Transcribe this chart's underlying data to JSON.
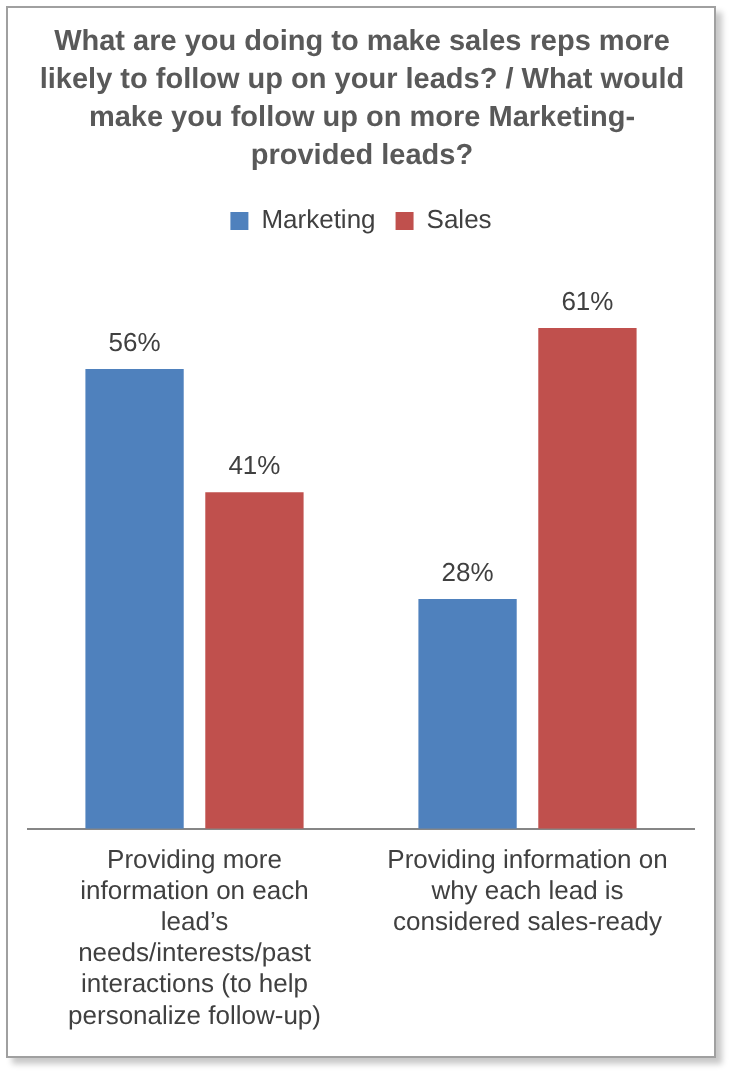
{
  "chart_data": {
    "type": "bar",
    "title": "What are you doing to make sales reps more likely to follow up on your leads? / What would make you follow up on more Marketing-provided leads?",
    "categories": [
      "Providing more information on each lead’s needs/interests/past interactions (to help personalize follow-up)",
      "Providing information on why each lead is considered sales-ready"
    ],
    "series": [
      {
        "name": "Marketing",
        "color": "#4f81bd",
        "values": [
          56,
          28
        ],
        "value_labels": [
          "56%",
          "28%"
        ]
      },
      {
        "name": "Sales",
        "color": "#c0504d",
        "values": [
          41,
          61
        ],
        "value_labels": [
          "41%",
          "61%"
        ]
      }
    ],
    "legend": "top",
    "grid": false
  }
}
